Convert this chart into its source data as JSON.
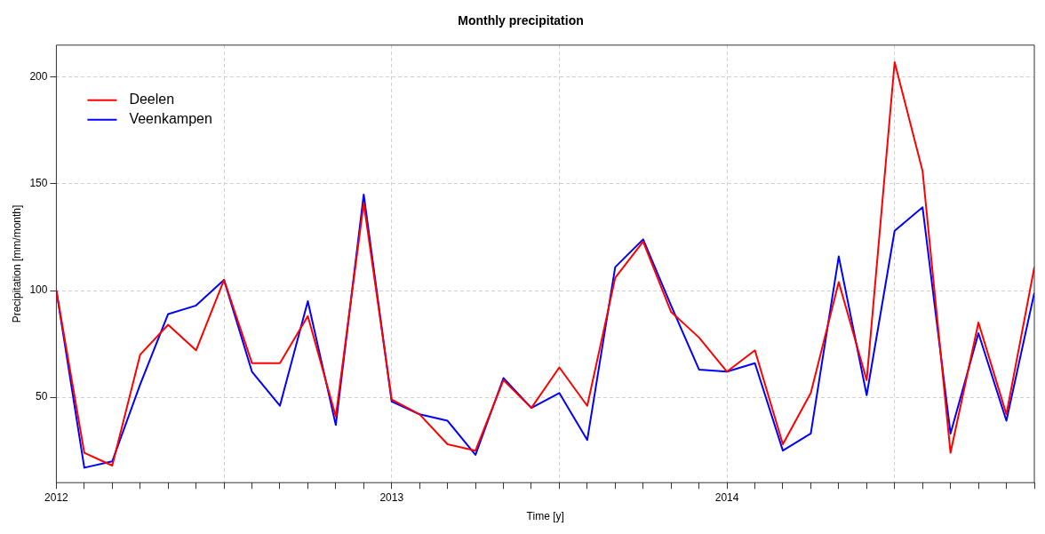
{
  "chart_data": {
    "type": "line",
    "title": "Monthly precipitation",
    "xlabel": "Time [y]",
    "ylabel": "Precipitation [mm/month]",
    "x": [
      "2012-01",
      "2012-02",
      "2012-03",
      "2012-04",
      "2012-05",
      "2012-06",
      "2012-07",
      "2012-08",
      "2012-09",
      "2012-10",
      "2012-11",
      "2012-12",
      "2013-01",
      "2013-02",
      "2013-03",
      "2013-04",
      "2013-05",
      "2013-06",
      "2013-07",
      "2013-08",
      "2013-09",
      "2013-10",
      "2013-11",
      "2013-12",
      "2014-01",
      "2014-02",
      "2014-03",
      "2014-04",
      "2014-05",
      "2014-06",
      "2014-07",
      "2014-08",
      "2014-09",
      "2014-10",
      "2014-11",
      "2014-12"
    ],
    "series": [
      {
        "name": "Deelen",
        "color": "#ff0000",
        "values": [
          100,
          24,
          18,
          70,
          84,
          72,
          105,
          66,
          66,
          88,
          41,
          141,
          49,
          42,
          28,
          25,
          58,
          45,
          64,
          46,
          106,
          123,
          90,
          78,
          62,
          72,
          28,
          52,
          104,
          58,
          207,
          156,
          24,
          85,
          42,
          111
        ]
      },
      {
        "name": "Veenkampen",
        "color": "#0000ff",
        "values": [
          100,
          17,
          20,
          56,
          89,
          93,
          105,
          62,
          46,
          95,
          37,
          145,
          48,
          42,
          39,
          23,
          59,
          45,
          52,
          30,
          111,
          124,
          93,
          63,
          62,
          66,
          25,
          33,
          116,
          51,
          128,
          139,
          33,
          80,
          39,
          99
        ]
      }
    ],
    "xlim": [
      "2012-01",
      "2014-12"
    ],
    "xticks": [
      "2012",
      {
        "value": "2012-02",
        "label": null
      },
      {
        "value": "2012-03",
        "label": null
      },
      {
        "value": "2012-04",
        "label": null
      },
      {
        "value": "2012-05",
        "label": null
      },
      {
        "value": "2012-06",
        "label": null
      },
      {
        "value": "2012-07",
        "label": null
      },
      {
        "value": "2012-08",
        "label": null
      },
      {
        "value": "2012-09",
        "label": null
      },
      {
        "value": "2012-10",
        "label": null
      },
      {
        "value": "2012-11",
        "label": null
      },
      {
        "value": "2012-12",
        "label": null
      },
      "2013",
      {
        "value": "2013-02",
        "label": null
      },
      {
        "value": "2013-03",
        "label": null
      },
      {
        "value": "2013-04",
        "label": null
      },
      {
        "value": "2013-05",
        "label": null
      },
      {
        "value": "2013-06",
        "label": null
      },
      {
        "value": "2013-07",
        "label": null
      },
      {
        "value": "2013-08",
        "label": null
      },
      {
        "value": "2013-09",
        "label": null
      },
      {
        "value": "2013-10",
        "label": null
      },
      {
        "value": "2013-11",
        "label": null
      },
      {
        "value": "2013-12",
        "label": null
      },
      "2014",
      {
        "value": "2014-02",
        "label": null
      },
      {
        "value": "2014-03",
        "label": null
      },
      {
        "value": "2014-04",
        "label": null
      },
      {
        "value": "2014-05",
        "label": null
      },
      {
        "value": "2014-06",
        "label": null
      },
      {
        "value": "2014-07",
        "label": null
      },
      {
        "value": "2014-08",
        "label": null
      },
      {
        "value": "2014-09",
        "label": null
      },
      {
        "value": "2014-10",
        "label": null
      },
      {
        "value": "2014-11",
        "label": null
      },
      {
        "value": "2014-12",
        "label": null
      }
    ],
    "ylim": [
      10,
      215
    ],
    "yticks": [
      50,
      100,
      150,
      200
    ],
    "grid": true,
    "legend": "top left",
    "marker": "none",
    "line_style": "solid"
  }
}
